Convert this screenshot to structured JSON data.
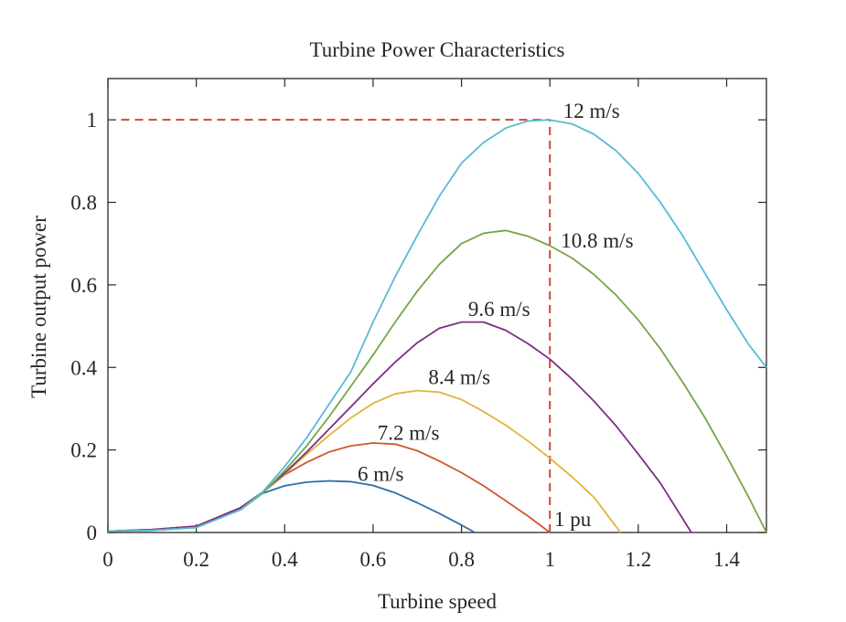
{
  "chart_data": {
    "type": "line",
    "title": "Turbine Power Characteristics",
    "xlabel": "Turbine speed",
    "ylabel": "Turbine output power",
    "xlim": [
      0,
      1.49
    ],
    "ylim": [
      0,
      1.1
    ],
    "xticks": [
      0,
      0.2,
      0.4,
      0.6,
      0.8,
      1,
      1.2,
      1.4
    ],
    "xtick_labels": [
      "0",
      "0.2",
      "0.4",
      "0.6",
      "0.8",
      "1",
      "1.2",
      "1.4"
    ],
    "yticks": [
      0,
      0.2,
      0.4,
      0.6,
      0.8,
      1
    ],
    "ytick_labels": [
      "0",
      "0.2",
      "0.4",
      "0.6",
      "0.8",
      "1"
    ],
    "grid": false,
    "series": [
      {
        "name": "6 m/s",
        "color": "#2d6fa6",
        "x": [
          0,
          0.1,
          0.2,
          0.3,
          0.35,
          0.4,
          0.45,
          0.5,
          0.55,
          0.6,
          0.65,
          0.7,
          0.75,
          0.8,
          0.83
        ],
        "y": [
          0.003,
          0.007,
          0.015,
          0.06,
          0.095,
          0.113,
          0.122,
          0.125,
          0.123,
          0.114,
          0.096,
          0.072,
          0.046,
          0.018,
          0.0
        ]
      },
      {
        "name": "7.2 m/s",
        "color": "#d1582a",
        "x": [
          0,
          0.1,
          0.2,
          0.3,
          0.35,
          0.4,
          0.45,
          0.5,
          0.55,
          0.6,
          0.65,
          0.7,
          0.75,
          0.8,
          0.85,
          0.9,
          0.95,
          1.0
        ],
        "y": [
          0.003,
          0.007,
          0.015,
          0.06,
          0.097,
          0.14,
          0.17,
          0.195,
          0.21,
          0.217,
          0.214,
          0.198,
          0.173,
          0.145,
          0.113,
          0.077,
          0.04,
          0.0
        ]
      },
      {
        "name": "8.4 m/s",
        "color": "#e2b33a",
        "x": [
          0,
          0.1,
          0.2,
          0.3,
          0.35,
          0.4,
          0.45,
          0.5,
          0.55,
          0.6,
          0.65,
          0.7,
          0.75,
          0.8,
          0.85,
          0.9,
          0.95,
          1.0,
          1.05,
          1.1,
          1.16
        ],
        "y": [
          0.003,
          0.007,
          0.015,
          0.06,
          0.098,
          0.142,
          0.19,
          0.235,
          0.278,
          0.313,
          0.336,
          0.344,
          0.34,
          0.322,
          0.293,
          0.26,
          0.222,
          0.18,
          0.135,
          0.085,
          0.0
        ]
      },
      {
        "name": "9.6 m/s",
        "color": "#7b2f84",
        "x": [
          0,
          0.1,
          0.2,
          0.3,
          0.35,
          0.4,
          0.45,
          0.5,
          0.55,
          0.6,
          0.65,
          0.7,
          0.75,
          0.8,
          0.85,
          0.9,
          0.95,
          1.0,
          1.05,
          1.1,
          1.15,
          1.2,
          1.25,
          1.32
        ],
        "y": [
          0.003,
          0.007,
          0.015,
          0.06,
          0.098,
          0.144,
          0.195,
          0.25,
          0.305,
          0.36,
          0.413,
          0.46,
          0.495,
          0.51,
          0.51,
          0.49,
          0.458,
          0.42,
          0.372,
          0.318,
          0.258,
          0.19,
          0.12,
          0.0
        ]
      },
      {
        "name": "10.8 m/s",
        "color": "#75a545",
        "x": [
          0,
          0.1,
          0.2,
          0.3,
          0.35,
          0.4,
          0.45,
          0.5,
          0.55,
          0.6,
          0.65,
          0.7,
          0.75,
          0.8,
          0.85,
          0.9,
          0.95,
          1.0,
          1.05,
          1.1,
          1.15,
          1.2,
          1.25,
          1.3,
          1.35,
          1.4,
          1.45,
          1.49
        ],
        "y": [
          0.003,
          0.005,
          0.012,
          0.055,
          0.095,
          0.15,
          0.21,
          0.28,
          0.355,
          0.43,
          0.51,
          0.585,
          0.65,
          0.7,
          0.725,
          0.732,
          0.718,
          0.695,
          0.665,
          0.625,
          0.575,
          0.515,
          0.445,
          0.365,
          0.28,
          0.185,
          0.085,
          0.0
        ]
      },
      {
        "name": "12 m/s",
        "color": "#5ab9d7",
        "x": [
          0,
          0.1,
          0.2,
          0.3,
          0.35,
          0.4,
          0.45,
          0.5,
          0.55,
          0.6,
          0.65,
          0.7,
          0.75,
          0.8,
          0.85,
          0.9,
          0.95,
          1.0,
          1.05,
          1.1,
          1.15,
          1.2,
          1.25,
          1.3,
          1.35,
          1.4,
          1.45,
          1.49
        ],
        "y": [
          0.003,
          0.005,
          0.012,
          0.055,
          0.098,
          0.16,
          0.23,
          0.31,
          0.39,
          0.51,
          0.62,
          0.72,
          0.815,
          0.895,
          0.945,
          0.98,
          0.997,
          1.0,
          0.99,
          0.965,
          0.925,
          0.87,
          0.8,
          0.72,
          0.63,
          0.54,
          0.455,
          0.4
        ]
      }
    ],
    "reference_lines": [
      {
        "name": "rated-power-line",
        "color": "#c94a3a",
        "dashed": true,
        "x": [
          0.03,
          1.0
        ],
        "y": [
          1.0,
          1.0
        ]
      },
      {
        "name": "rated-speed-line",
        "color": "#c94a3a",
        "dashed": true,
        "x": [
          1.0,
          1.0
        ],
        "y": [
          0.0,
          1.0
        ]
      }
    ],
    "annotations": [
      {
        "name": "label-12ms",
        "text": "12 m/s",
        "x": 1.03,
        "y": 1.005
      },
      {
        "name": "label-10-8ms",
        "text": "10.8 m/s",
        "x": 1.025,
        "y": 0.69
      },
      {
        "name": "label-9-6ms",
        "text": "9.6 m/s",
        "x": 0.815,
        "y": 0.525
      },
      {
        "name": "label-8-4ms",
        "text": "8.4 m/s",
        "x": 0.725,
        "y": 0.36
      },
      {
        "name": "label-7-2ms",
        "text": "7.2 m/s",
        "x": 0.61,
        "y": 0.225
      },
      {
        "name": "label-6ms",
        "text": "6 m/s",
        "x": 0.565,
        "y": 0.125
      },
      {
        "name": "label-1pu",
        "text": "1 pu",
        "x": 1.01,
        "y": 0.015
      }
    ]
  }
}
